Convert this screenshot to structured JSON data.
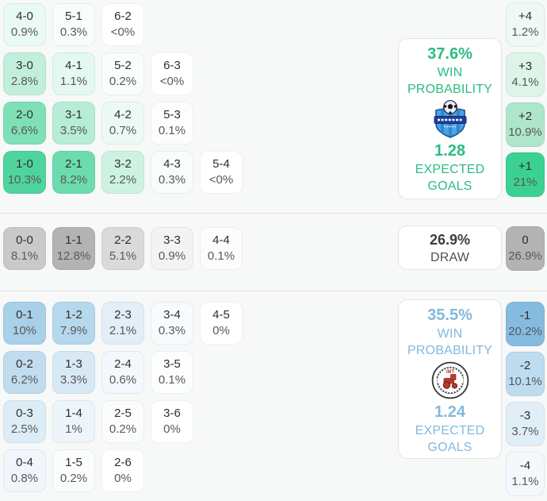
{
  "home": {
    "win_probability": "37.6%",
    "win_label": [
      "WIN",
      "PROBABILITY"
    ],
    "expected_goals": "1.28",
    "expected_label": [
      "EXPECTED",
      "GOALS"
    ],
    "accent_color": "#2abd81",
    "grid": [
      [
        {
          "score": "4-0",
          "pct": "0.9%",
          "bg": "#e9faf2"
        },
        {
          "score": "5-1",
          "pct": "0.3%",
          "bg": "#f7fdfa"
        },
        {
          "score": "6-2",
          "pct": "<0%",
          "bg": "#ffffff"
        }
      ],
      [
        {
          "score": "3-0",
          "pct": "2.8%",
          "bg": "#c2efdc"
        },
        {
          "score": "4-1",
          "pct": "1.1%",
          "bg": "#e3f8ef"
        },
        {
          "score": "5-2",
          "pct": "0.2%",
          "bg": "#f9fdfb"
        },
        {
          "score": "6-3",
          "pct": "<0%",
          "bg": "#ffffff"
        }
      ],
      [
        {
          "score": "2-0",
          "pct": "6.6%",
          "bg": "#7fe0b7"
        },
        {
          "score": "3-1",
          "pct": "3.5%",
          "bg": "#b7ecd6"
        },
        {
          "score": "4-2",
          "pct": "0.7%",
          "bg": "#ecfaf4"
        },
        {
          "score": "5-3",
          "pct": "0.1%",
          "bg": "#fbfefc"
        }
      ],
      [
        {
          "score": "1-0",
          "pct": "10.3%",
          "bg": "#4fd49e"
        },
        {
          "score": "2-1",
          "pct": "8.2%",
          "bg": "#6cdcae"
        },
        {
          "score": "3-2",
          "pct": "2.2%",
          "bg": "#cdf2e2"
        },
        {
          "score": "4-3",
          "pct": "0.3%",
          "bg": "#f7fdfa"
        },
        {
          "score": "5-4",
          "pct": "<0%",
          "bg": "#ffffff"
        }
      ]
    ],
    "diffs": [
      {
        "label": "+4",
        "pct": "1.2%",
        "bg": "#eff9f4"
      },
      {
        "label": "+3",
        "pct": "4.1%",
        "bg": "#def4e9"
      },
      {
        "label": "+2",
        "pct": "10.9%",
        "bg": "#aee6cc"
      },
      {
        "label": "+1",
        "pct": "21%",
        "bg": "#3bd193"
      }
    ]
  },
  "draw": {
    "probability": "26.9%",
    "label": "DRAW",
    "cells": [
      {
        "score": "0-0",
        "pct": "8.1%",
        "bg": "#c9c9c9"
      },
      {
        "score": "1-1",
        "pct": "12.8%",
        "bg": "#b3b3b3"
      },
      {
        "score": "2-2",
        "pct": "5.1%",
        "bg": "#dadada"
      },
      {
        "score": "3-3",
        "pct": "0.9%",
        "bg": "#f3f3f3"
      },
      {
        "score": "4-4",
        "pct": "0.1%",
        "bg": "#fcfcfc"
      }
    ],
    "diff": {
      "label": "0",
      "pct": "26.9%",
      "bg": "#b3b3b3"
    }
  },
  "away": {
    "win_probability": "35.5%",
    "win_label": [
      "WIN",
      "PROBABILITY"
    ],
    "expected_goals": "1.24",
    "expected_label": [
      "EXPECTED",
      "GOALS"
    ],
    "accent_color": "#84b8dc",
    "logo_text": "IMT",
    "grid": [
      [
        {
          "score": "0-1",
          "pct": "10%",
          "bg": "#a9d0e9"
        },
        {
          "score": "1-2",
          "pct": "7.9%",
          "bg": "#b6d8ec"
        },
        {
          "score": "2-3",
          "pct": "2.1%",
          "bg": "#e2eff8"
        },
        {
          "score": "3-4",
          "pct": "0.3%",
          "bg": "#f8fbfd"
        },
        {
          "score": "4-5",
          "pct": "0%",
          "bg": "#ffffff"
        }
      ],
      [
        {
          "score": "0-2",
          "pct": "6.2%",
          "bg": "#c1dcef"
        },
        {
          "score": "1-3",
          "pct": "3.3%",
          "bg": "#d7e9f5"
        },
        {
          "score": "2-4",
          "pct": "0.6%",
          "bg": "#f3f8fc"
        },
        {
          "score": "3-5",
          "pct": "0.1%",
          "bg": "#fbfdfe"
        }
      ],
      [
        {
          "score": "0-3",
          "pct": "2.5%",
          "bg": "#ddedf7"
        },
        {
          "score": "1-4",
          "pct": "1%",
          "bg": "#edf5fa"
        },
        {
          "score": "2-5",
          "pct": "0.2%",
          "bg": "#fafcfd"
        },
        {
          "score": "3-6",
          "pct": "0%",
          "bg": "#ffffff"
        }
      ],
      [
        {
          "score": "0-4",
          "pct": "0.8%",
          "bg": "#f0f6fb"
        },
        {
          "score": "1-5",
          "pct": "0.2%",
          "bg": "#fafcfd"
        },
        {
          "score": "2-6",
          "pct": "0%",
          "bg": "#ffffff"
        }
      ]
    ],
    "diffs": [
      {
        "label": "-1",
        "pct": "20.2%",
        "bg": "#85bbdf"
      },
      {
        "label": "-2",
        "pct": "10.1%",
        "bg": "#bddcef"
      },
      {
        "label": "-3",
        "pct": "3.7%",
        "bg": "#e0eef7"
      },
      {
        "label": "-4",
        "pct": "1.1%",
        "bg": "#f2f8fc"
      }
    ]
  }
}
